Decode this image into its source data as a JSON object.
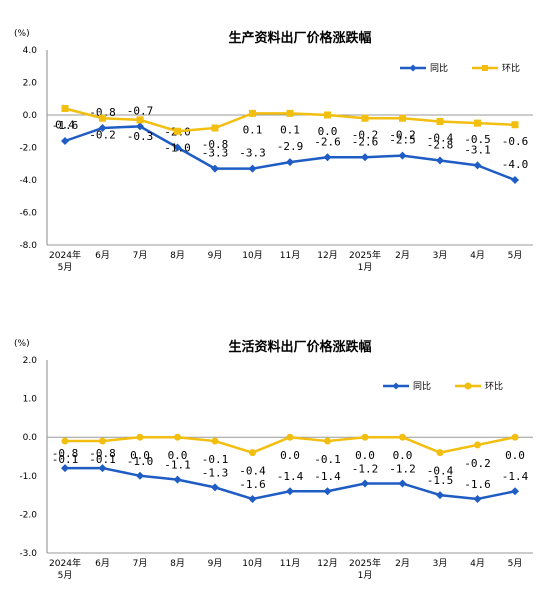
{
  "chart_data": [
    {
      "type": "line",
      "title": "生产资料出厂价格涨跌幅",
      "unit_label": "(%)",
      "ylim": [
        -8.0,
        4.0
      ],
      "yticks": [
        "4.0",
        "2.0",
        "0.0",
        "-2.0",
        "-4.0",
        "-6.0",
        "-8.0"
      ],
      "categories": [
        [
          "2024年",
          "5月"
        ],
        [
          "6月"
        ],
        [
          "7月"
        ],
        [
          "8月"
        ],
        [
          "9月"
        ],
        [
          "10月"
        ],
        [
          "11月"
        ],
        [
          "12月"
        ],
        [
          "2025年",
          "1月"
        ],
        [
          "2月"
        ],
        [
          "3月"
        ],
        [
          "4月"
        ],
        [
          "5月"
        ]
      ],
      "legend": {
        "position": "top-right"
      },
      "series": [
        {
          "name": "同比",
          "color": "#1f5cc4",
          "marker": "diamond",
          "values": [
            -1.6,
            -0.8,
            -0.7,
            -2.0,
            -3.3,
            -3.3,
            -2.9,
            -2.6,
            -2.6,
            -2.5,
            -2.8,
            -3.1,
            -4.0
          ],
          "labels": [
            "-1.6",
            "-0.8",
            "-0.7",
            "-2.0",
            "-3.3",
            "-3.3",
            "-2.9",
            "-2.6",
            "-2.6",
            "-2.5",
            "-2.8",
            "-3.1",
            "-4.0"
          ]
        },
        {
          "name": "环比",
          "color": "#f2be0f",
          "marker": "square",
          "values": [
            0.4,
            -0.2,
            -0.3,
            -1.0,
            -0.8,
            0.1,
            0.1,
            0.0,
            -0.2,
            -0.2,
            -0.4,
            -0.5,
            -0.6
          ],
          "labels": [
            "0.4",
            "-0.2",
            "-0.3",
            "-1.0",
            "-0.8",
            "0.1",
            "0.1",
            "0.0",
            "-0.2",
            "-0.2",
            "-0.4",
            "-0.5",
            "-0.6"
          ]
        }
      ]
    },
    {
      "type": "line",
      "title": "生活资料出厂价格涨跌幅",
      "unit_label": "(%)",
      "ylim": [
        -3.0,
        2.0
      ],
      "yticks": [
        "2.0",
        "1.0",
        "0.0",
        "-1.0",
        "-2.0",
        "-3.0"
      ],
      "categories": [
        [
          "2024年",
          "5月"
        ],
        [
          "6月"
        ],
        [
          "7月"
        ],
        [
          "8月"
        ],
        [
          "9月"
        ],
        [
          "10月"
        ],
        [
          "11月"
        ],
        [
          "12月"
        ],
        [
          "2025年",
          "1月"
        ],
        [
          "2月"
        ],
        [
          "3月"
        ],
        [
          "4月"
        ],
        [
          "5月"
        ]
      ],
      "legend": {
        "position": "top-right"
      },
      "series": [
        {
          "name": "同比",
          "color": "#1f5cc4",
          "marker": "diamond",
          "values": [
            -0.8,
            -0.8,
            -1.0,
            -1.1,
            -1.3,
            -1.6,
            -1.4,
            -1.4,
            -1.2,
            -1.2,
            -1.5,
            -1.6,
            -1.4
          ],
          "labels": [
            "-0.8",
            "-0.8",
            "-1.0",
            "-1.1",
            "-1.3",
            "-1.6",
            "-1.4",
            "-1.4",
            "-1.2",
            "-1.2",
            "-1.5",
            "-1.6",
            "-1.4"
          ]
        },
        {
          "name": "环比",
          "color": "#f2be0f",
          "marker": "circle",
          "values": [
            -0.1,
            -0.1,
            0.0,
            0.0,
            -0.1,
            -0.4,
            0.0,
            -0.1,
            0.0,
            0.0,
            -0.4,
            -0.2,
            0.0
          ],
          "labels": [
            "-0.1",
            "-0.1",
            "0.0",
            "0.0",
            "-0.1",
            "-0.4",
            "0.0",
            "-0.1",
            "0.0",
            "0.0",
            "-0.4",
            "-0.2",
            "0.0"
          ]
        }
      ]
    }
  ]
}
